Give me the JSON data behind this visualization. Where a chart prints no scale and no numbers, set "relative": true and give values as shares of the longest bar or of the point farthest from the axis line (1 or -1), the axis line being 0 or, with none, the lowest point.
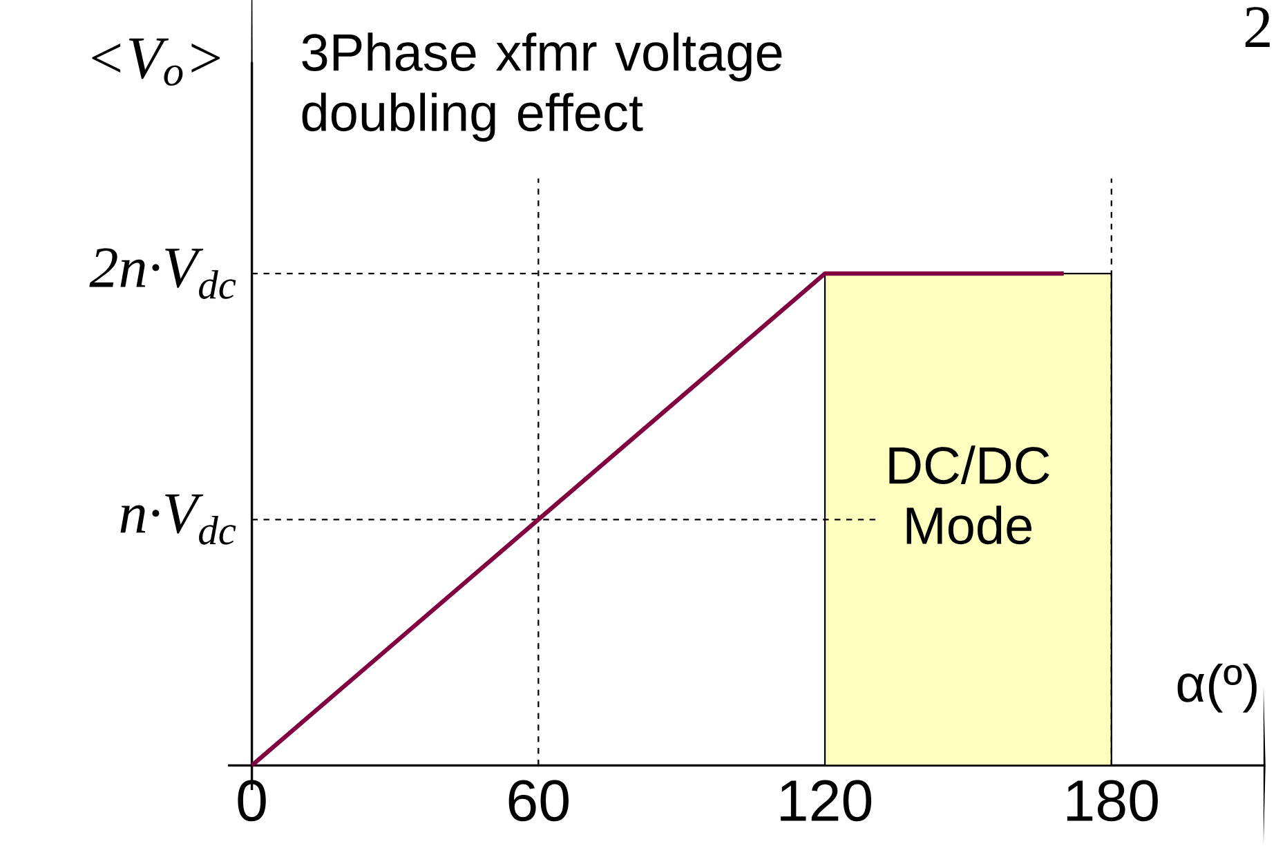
{
  "chart_data": {
    "type": "line",
    "relative": true,
    "title": "3Phase xfmr voltage doubling effect",
    "xlabel": "α(º)",
    "ylabel": "<V$_{o}$>",
    "xlim": [
      -5,
      212
    ],
    "xticks": [
      0,
      60,
      120,
      180
    ],
    "series": [
      {
        "color": "#800040",
        "x": [
          0,
          120,
          170
        ],
        "values": [
          0,
          1,
          1
        ]
      }
    ],
    "ref_lines": [
      {
        "axis": "x",
        "value": 60,
        "line_style": "dashed"
      },
      {
        "axis": "x",
        "value": 180,
        "line_style": "dashed"
      },
      {
        "axis": "y",
        "value": 0.5,
        "label": "n·V$_{dc}$",
        "line_style": "dashed"
      },
      {
        "axis": "y",
        "value": 1,
        "label": "2n·V$_{dc}$",
        "line_style": "dashed"
      }
    ],
    "bands": [
      {
        "axis": "x",
        "from": 120,
        "to": 180,
        "label": "DC/DC Mode",
        "color": "#ffffc0"
      }
    ],
    "annotations": [
      "2"
    ]
  }
}
